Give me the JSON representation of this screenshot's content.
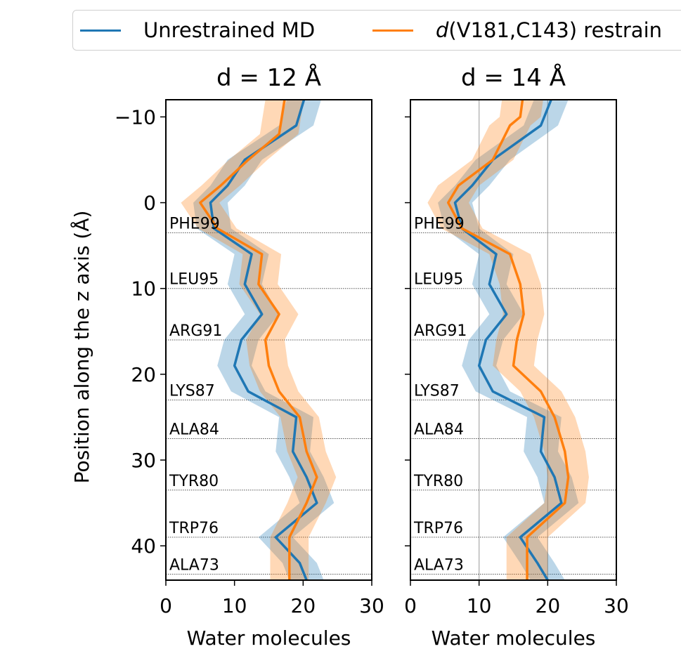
{
  "legend": {
    "items": [
      {
        "label": "Unrestrained MD",
        "color": "#1f77b4"
      },
      {
        "label_italic": "d",
        "label_rest": "(V181,C143) restrain",
        "color": "#ff7f0e"
      }
    ]
  },
  "chart_data": [
    {
      "type": "line",
      "title": "d = 12 Å",
      "xlabel": "Water molecules",
      "ylabel": "Position along the z axis (Å)",
      "xlim": [
        0,
        30
      ],
      "ylim": [
        -12,
        44
      ],
      "xticks": [
        0,
        10,
        20,
        30
      ],
      "yticks": [
        -10,
        0,
        10,
        20,
        30,
        40
      ],
      "ytick_labels": [
        "−10",
        "0",
        "10",
        "20",
        "30",
        "40"
      ],
      "vertical_gridlines": [],
      "residues": [
        {
          "label": "PHE99",
          "z": 3.5
        },
        {
          "label": "LEU95",
          "z": 10
        },
        {
          "label": "ARG91",
          "z": 16
        },
        {
          "label": "LYS87",
          "z": 23
        },
        {
          "label": "ALA84",
          "z": 27.5
        },
        {
          "label": "TYR80",
          "z": 33.5
        },
        {
          "label": "TRP76",
          "z": 39
        },
        {
          "label": "ALA73",
          "z": 43.3
        }
      ],
      "series": [
        {
          "name": "Unrestrained MD",
          "color": "#1f77b4",
          "z": [
            -13,
            -9,
            -5,
            -2,
            0,
            3,
            6,
            9.5,
            13,
            16,
            19,
            22,
            25,
            29,
            32,
            35,
            39,
            42,
            44
          ],
          "x": [
            20.5,
            19,
            11.5,
            9,
            6.5,
            7,
            12.5,
            11.5,
            14,
            11,
            10,
            12,
            19,
            18.5,
            20.5,
            22,
            16,
            19.5,
            20.5
          ],
          "spread": 2.5
        },
        {
          "name": "d(V181,C143) restrain",
          "color": "#ff7f0e",
          "z": [
            -13,
            -8,
            -5,
            -2,
            0,
            3,
            6,
            9.5,
            13,
            16,
            19,
            22,
            25,
            29,
            32,
            35,
            39,
            42,
            44
          ],
          "x": [
            17.5,
            16.5,
            12,
            8,
            5,
            7.5,
            14,
            13.5,
            16.5,
            14.5,
            15,
            16.5,
            19.5,
            20.5,
            22,
            20.5,
            18,
            18,
            18
          ],
          "spread": 2.8
        }
      ]
    },
    {
      "type": "line",
      "title": "d = 14 Å",
      "xlabel": "Water molecules",
      "ylabel": "",
      "xlim": [
        0,
        30
      ],
      "ylim": [
        -12,
        44
      ],
      "xticks": [
        0,
        10,
        20,
        30
      ],
      "yticks": [
        -10,
        0,
        10,
        20,
        30,
        40
      ],
      "ytick_labels": [],
      "vertical_gridlines": [
        10,
        20
      ],
      "residues": [
        {
          "label": "PHE99",
          "z": 3.5
        },
        {
          "label": "LEU95",
          "z": 10
        },
        {
          "label": "ARG91",
          "z": 16
        },
        {
          "label": "LYS87",
          "z": 23
        },
        {
          "label": "ALA84",
          "z": 27.5
        },
        {
          "label": "TYR80",
          "z": 33.5
        },
        {
          "label": "TRP76",
          "z": 39
        },
        {
          "label": "ALA73",
          "z": 43.3
        }
      ],
      "series": [
        {
          "name": "Unrestrained MD",
          "color": "#1f77b4",
          "z": [
            -13,
            -9,
            -5,
            -2,
            0,
            3,
            6,
            9.5,
            13,
            16,
            19,
            22,
            25,
            29,
            32,
            35,
            39,
            42,
            44
          ],
          "x": [
            21,
            19,
            12,
            9,
            6.5,
            7.5,
            12.5,
            11.5,
            14,
            11,
            10,
            12,
            19.5,
            19,
            21,
            22,
            16,
            18.5,
            20
          ],
          "spread": 2.5
        },
        {
          "name": "d(V181,C143) restrain",
          "color": "#ff7f0e",
          "z": [
            -13,
            -10,
            -9,
            -5,
            -2,
            0,
            3,
            6,
            9.5,
            13,
            16,
            19,
            22,
            25,
            29,
            32,
            35,
            39,
            42,
            44
          ],
          "x": [
            16.5,
            16,
            14.5,
            12,
            7,
            5.5,
            7.5,
            14.5,
            16,
            16.5,
            15.5,
            15,
            19,
            21,
            22.5,
            23,
            22.5,
            17,
            17,
            17
          ],
          "spread": 3
        }
      ]
    }
  ]
}
